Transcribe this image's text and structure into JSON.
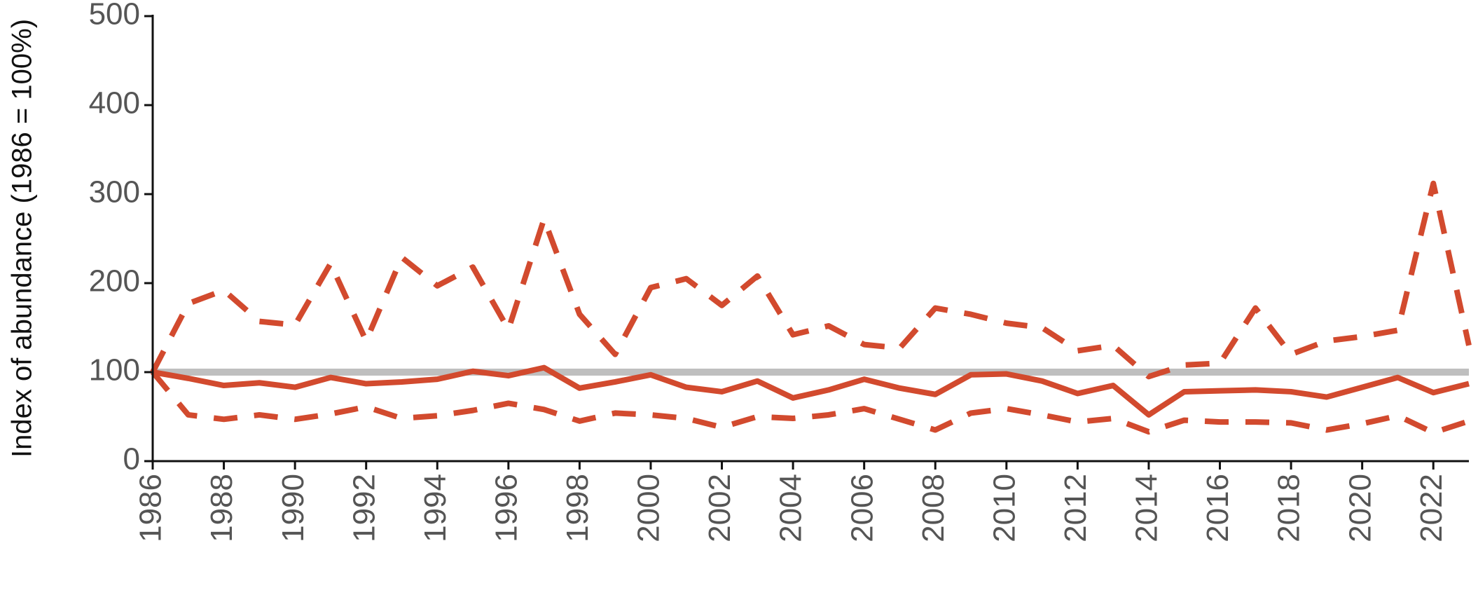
{
  "chart_data": {
    "type": "line",
    "y_label": "Index of abundance (1986 = 100%)",
    "x": [
      1986,
      1987,
      1988,
      1989,
      1990,
      1991,
      1992,
      1993,
      1994,
      1995,
      1996,
      1997,
      1998,
      1999,
      2000,
      2001,
      2002,
      2003,
      2004,
      2005,
      2006,
      2007,
      2008,
      2009,
      2010,
      2011,
      2012,
      2013,
      2014,
      2015,
      2016,
      2017,
      2018,
      2019,
      2020,
      2021,
      2022,
      2023
    ],
    "series": [
      {
        "color": "#d24a2e",
        "style": "solid",
        "values": [
          100,
          93,
          85,
          88,
          83,
          94,
          87,
          89,
          92,
          101,
          96,
          105,
          82,
          89,
          97,
          83,
          78,
          90,
          71,
          80,
          92,
          82,
          75,
          97,
          98,
          90,
          76,
          85,
          52,
          78,
          79,
          80,
          78,
          72,
          83,
          94,
          77,
          87
        ]
      },
      {
        "color": "#d24a2e",
        "style": "dashed",
        "values": [
          100,
          177,
          192,
          157,
          153,
          222,
          135,
          229,
          197,
          218,
          148,
          272,
          165,
          120,
          195,
          205,
          175,
          208,
          142,
          152,
          131,
          127,
          172,
          165,
          155,
          150,
          124,
          130,
          95,
          108,
          110,
          172,
          120,
          135,
          140,
          147,
          312,
          130
        ]
      },
      {
        "color": "#d24a2e",
        "style": "dashed",
        "values": [
          100,
          52,
          47,
          52,
          47,
          53,
          61,
          48,
          51,
          57,
          65,
          58,
          45,
          54,
          52,
          48,
          38,
          50,
          48,
          52,
          59,
          47,
          35,
          54,
          59,
          52,
          44,
          48,
          33,
          46,
          44,
          44,
          43,
          35,
          42,
          51,
          32,
          45
        ]
      }
    ],
    "reference_line": 100,
    "reference_color": "#bfbfbf",
    "xlim": [
      1986,
      2023
    ],
    "xticks": [
      1986,
      1988,
      1990,
      1992,
      1994,
      1996,
      1998,
      2000,
      2002,
      2004,
      2006,
      2008,
      2010,
      2012,
      2014,
      2016,
      2018,
      2020,
      2022
    ],
    "ylim": [
      0,
      500
    ],
    "yticks": [
      0,
      100,
      200,
      300,
      400,
      500
    ]
  }
}
